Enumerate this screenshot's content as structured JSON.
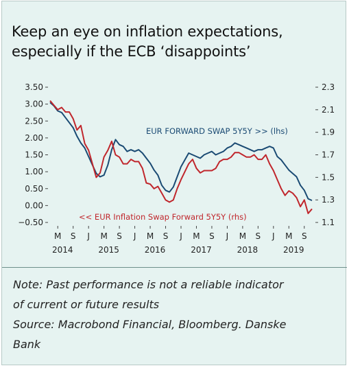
{
  "title_line1": "Keep an eye on inflation expectations,",
  "title_line2": "especially if the ECB ‘disappoints’",
  "notes": {
    "line1": "Note: Past performance is not a reliable indicator",
    "line2": "of current or future results",
    "line3": "Source: Macrobond Financial, Bloomberg. Danske",
    "line4": "Bank"
  },
  "chart_data": {
    "type": "line",
    "title": "Keep an eye on inflation expectations, especially if the ECB ‘disappoints’",
    "xlabel": "",
    "ylabel": "",
    "x_tick_labels": [
      "M",
      "S",
      "J",
      "M",
      "S",
      "J",
      "M",
      "S",
      "J",
      "M",
      "S",
      "J",
      "M",
      "S",
      "J",
      "M",
      "S"
    ],
    "x_year_labels": [
      {
        "label": "2014",
        "month": "2014-03"
      },
      {
        "label": "2015",
        "month": "2015-03"
      },
      {
        "label": "2016",
        "month": "2016-03"
      },
      {
        "label": "2017",
        "month": "2017-03"
      },
      {
        "label": "2018",
        "month": "2018-03"
      },
      {
        "label": "2019",
        "month": "2019-03"
      }
    ],
    "x_range": [
      "2014-01",
      "2019-09"
    ],
    "left_axis": {
      "ylim": [
        -0.5,
        3.5
      ],
      "ticks": [
        "3.50",
        "3.00",
        "2.50",
        "2.00",
        "1.50",
        "1.00",
        "0.50",
        "0.00",
        "−0.50"
      ]
    },
    "right_axis": {
      "ylim": [
        1.1,
        2.3
      ],
      "ticks": [
        "2.3",
        "2.1",
        "1.9",
        "1.7",
        "1.5",
        "1.3",
        "1.1"
      ]
    },
    "grid": false,
    "series": [
      {
        "name": "EUR FORWARD SWAP 5Y5Y >> (lhs)",
        "axis": "left",
        "color": "#1a4a73",
        "x": [
          "2014-01",
          "2014-02",
          "2014-03",
          "2014-04",
          "2014-05",
          "2014-06",
          "2014-07",
          "2014-08",
          "2014-09",
          "2014-10",
          "2014-11",
          "2014-12",
          "2015-01",
          "2015-02",
          "2015-03",
          "2015-04",
          "2015-05",
          "2015-06",
          "2015-07",
          "2015-08",
          "2015-09",
          "2015-10",
          "2015-11",
          "2015-12",
          "2016-01",
          "2016-02",
          "2016-03",
          "2016-04",
          "2016-05",
          "2016-06",
          "2016-07",
          "2016-08",
          "2016-09",
          "2016-10",
          "2016-11",
          "2016-12",
          "2017-01",
          "2017-02",
          "2017-03",
          "2017-04",
          "2017-05",
          "2017-06",
          "2017-07",
          "2017-08",
          "2017-09",
          "2017-10",
          "2017-11",
          "2017-12",
          "2018-01",
          "2018-02",
          "2018-03",
          "2018-04",
          "2018-05",
          "2018-06",
          "2018-07",
          "2018-08",
          "2018-09",
          "2018-10",
          "2018-11",
          "2018-12",
          "2019-01",
          "2019-02",
          "2019-03",
          "2019-04",
          "2019-05",
          "2019-06",
          "2019-07",
          "2019-08",
          "2019-09"
        ],
        "values": [
          3.05,
          2.95,
          2.8,
          2.75,
          2.6,
          2.45,
          2.3,
          2.05,
          1.85,
          1.7,
          1.45,
          1.2,
          0.95,
          0.85,
          0.9,
          1.2,
          1.65,
          1.95,
          1.8,
          1.75,
          1.6,
          1.65,
          1.6,
          1.65,
          1.55,
          1.4,
          1.25,
          1.05,
          0.9,
          0.6,
          0.45,
          0.4,
          0.55,
          0.85,
          1.15,
          1.35,
          1.55,
          1.5,
          1.45,
          1.4,
          1.5,
          1.55,
          1.6,
          1.5,
          1.55,
          1.6,
          1.7,
          1.75,
          1.85,
          1.8,
          1.75,
          1.7,
          1.65,
          1.6,
          1.65,
          1.65,
          1.7,
          1.75,
          1.7,
          1.45,
          1.35,
          1.2,
          1.05,
          0.95,
          0.85,
          0.6,
          0.45,
          0.2,
          0.15
        ]
      },
      {
        "name": "<< EUR Inflation Swap Forward 5Y5Y (rhs)",
        "axis": "right",
        "color": "#c0262c",
        "x": [
          "2014-01",
          "2014-02",
          "2014-03",
          "2014-04",
          "2014-05",
          "2014-06",
          "2014-07",
          "2014-08",
          "2014-09",
          "2014-10",
          "2014-11",
          "2014-12",
          "2015-01",
          "2015-02",
          "2015-03",
          "2015-04",
          "2015-05",
          "2015-06",
          "2015-07",
          "2015-08",
          "2015-09",
          "2015-10",
          "2015-11",
          "2015-12",
          "2016-01",
          "2016-02",
          "2016-03",
          "2016-04",
          "2016-05",
          "2016-06",
          "2016-07",
          "2016-08",
          "2016-09",
          "2016-10",
          "2016-11",
          "2016-12",
          "2017-01",
          "2017-02",
          "2017-03",
          "2017-04",
          "2017-05",
          "2017-06",
          "2017-07",
          "2017-08",
          "2017-09",
          "2017-10",
          "2017-11",
          "2017-12",
          "2018-01",
          "2018-02",
          "2018-03",
          "2018-04",
          "2018-05",
          "2018-06",
          "2018-07",
          "2018-08",
          "2018-09",
          "2018-10",
          "2018-11",
          "2018-12",
          "2019-01",
          "2019-02",
          "2019-03",
          "2019-04",
          "2019-05",
          "2019-06",
          "2019-07",
          "2019-08",
          "2019-09"
        ],
        "values": [
          2.18,
          2.14,
          2.1,
          2.12,
          2.08,
          2.08,
          2.02,
          1.92,
          1.96,
          1.8,
          1.74,
          1.62,
          1.5,
          1.54,
          1.68,
          1.74,
          1.82,
          1.7,
          1.68,
          1.62,
          1.62,
          1.66,
          1.64,
          1.64,
          1.58,
          1.45,
          1.44,
          1.4,
          1.42,
          1.36,
          1.3,
          1.28,
          1.3,
          1.4,
          1.48,
          1.55,
          1.62,
          1.66,
          1.58,
          1.54,
          1.56,
          1.56,
          1.56,
          1.58,
          1.64,
          1.66,
          1.66,
          1.68,
          1.72,
          1.72,
          1.7,
          1.68,
          1.68,
          1.7,
          1.66,
          1.66,
          1.7,
          1.62,
          1.56,
          1.48,
          1.4,
          1.34,
          1.38,
          1.36,
          1.32,
          1.24,
          1.3,
          1.18,
          1.22
        ]
      }
    ],
    "annotations": [
      {
        "text": "EUR FORWARD SWAP 5Y5Y >> (lhs)",
        "color": "#1a4a73"
      },
      {
        "text": "<< EUR Inflation Swap Forward 5Y5Y (rhs)",
        "color": "#c0262c"
      }
    ]
  }
}
